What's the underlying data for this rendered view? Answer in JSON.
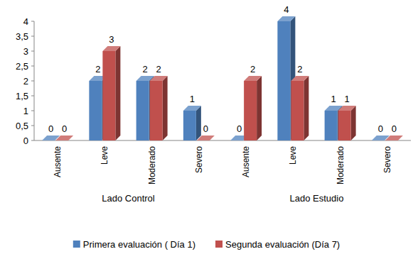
{
  "chart_data": {
    "type": "bar",
    "categories": [
      "Ausente",
      "Leve",
      "Moderado",
      "Severo",
      "Ausente",
      "Leve",
      "Moderado",
      "Severo"
    ],
    "category_groups": [
      "Lado Control",
      "Lado Estudio"
    ],
    "series": [
      {
        "name": "Primera evaluación ( Día 1)",
        "color": "#4f81bd",
        "values": [
          0,
          2,
          2,
          1,
          0,
          4,
          1,
          0
        ]
      },
      {
        "name": "Segunda evaluación (Día 7)",
        "color": "#c0504d",
        "values": [
          0,
          3,
          2,
          0,
          2,
          2,
          1,
          0
        ]
      }
    ],
    "ylim": [
      0,
      4
    ],
    "yticks": [
      0,
      {
        "value": 0.5,
        "label": "0,5"
      },
      1,
      {
        "value": 1.5,
        "label": "1,5"
      },
      2,
      {
        "value": 2.5,
        "label": "2,5"
      },
      3,
      {
        "value": 3.5,
        "label": "3,5"
      },
      4
    ],
    "grid": false,
    "legend": "bottom",
    "data_labels": true
  }
}
